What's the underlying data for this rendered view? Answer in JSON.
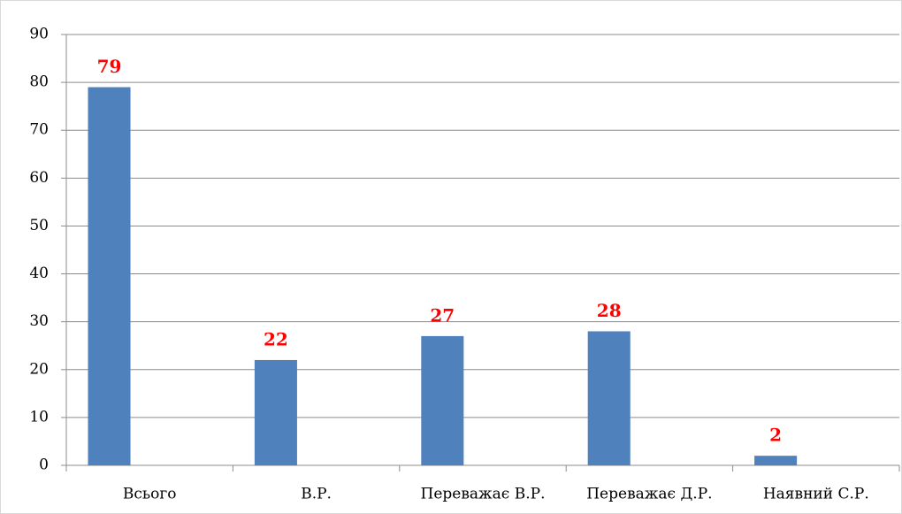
{
  "chart_data": {
    "type": "bar",
    "categories": [
      "Всього",
      "В.Р.",
      "Переважає В.Р.",
      "Переважає Д.Р.",
      "Наявний С.Р."
    ],
    "values": [
      79,
      22,
      27,
      28,
      2
    ],
    "color": "#4f81bd",
    "label_color": "#ff0000",
    "ylim": [
      0,
      90
    ],
    "yticks": [
      0,
      10,
      20,
      30,
      40,
      50,
      60,
      70,
      80,
      90
    ],
    "grid": true
  }
}
